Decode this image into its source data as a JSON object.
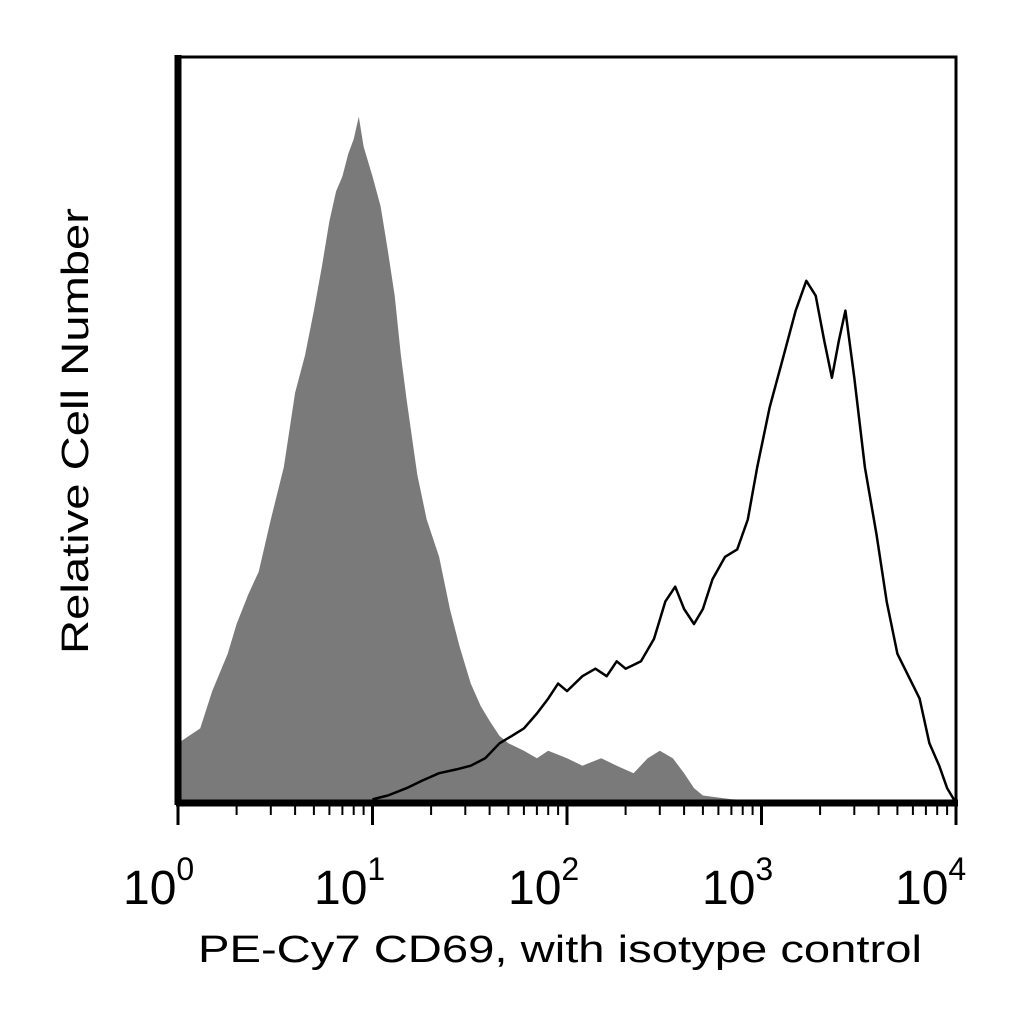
{
  "chart_data": {
    "type": "area",
    "title": "",
    "xlabel": "PE-Cy7 CD69, with isotype control",
    "ylabel": "Relative Cell Number",
    "x_scale": "log",
    "xlim": [
      1,
      10000
    ],
    "ylim": [
      0,
      100
    ],
    "grid": false,
    "legend": "none",
    "x_ticks": [
      {
        "base": "10",
        "exp": "0",
        "value": 1
      },
      {
        "base": "10",
        "exp": "1",
        "value": 10
      },
      {
        "base": "10",
        "exp": "2",
        "value": 100
      },
      {
        "base": "10",
        "exp": "3",
        "value": 1000
      },
      {
        "base": "10",
        "exp": "4",
        "value": 10000
      }
    ],
    "series": [
      {
        "style": "filled",
        "color": "#7a7a7a",
        "points": [
          [
            1.0,
            8
          ],
          [
            1.3,
            10
          ],
          [
            1.5,
            15
          ],
          [
            1.8,
            20
          ],
          [
            2.0,
            24
          ],
          [
            2.3,
            28
          ],
          [
            2.6,
            31
          ],
          [
            3.0,
            38
          ],
          [
            3.5,
            45
          ],
          [
            4.0,
            55
          ],
          [
            4.5,
            60
          ],
          [
            5.0,
            66
          ],
          [
            5.5,
            72
          ],
          [
            6.0,
            78
          ],
          [
            6.5,
            82
          ],
          [
            7.0,
            84
          ],
          [
            7.5,
            87
          ],
          [
            8.0,
            89
          ],
          [
            8.5,
            92
          ],
          [
            9.0,
            88
          ],
          [
            10.0,
            84
          ],
          [
            11.0,
            80
          ],
          [
            12.0,
            74
          ],
          [
            13.0,
            68
          ],
          [
            14.0,
            60
          ],
          [
            15.0,
            54
          ],
          [
            17.0,
            44
          ],
          [
            19.0,
            38
          ],
          [
            22.0,
            33
          ],
          [
            25.0,
            26
          ],
          [
            28.0,
            21
          ],
          [
            32.0,
            16
          ],
          [
            36.0,
            13
          ],
          [
            40.0,
            11
          ],
          [
            45.0,
            9
          ],
          [
            50.0,
            8
          ],
          [
            60.0,
            7
          ],
          [
            70.0,
            6
          ],
          [
            80.0,
            7
          ],
          [
            100.0,
            6
          ],
          [
            120.0,
            5
          ],
          [
            150.0,
            6
          ],
          [
            180.0,
            5
          ],
          [
            220.0,
            4
          ],
          [
            260.0,
            6
          ],
          [
            300.0,
            7
          ],
          [
            350.0,
            6
          ],
          [
            400.0,
            4
          ],
          [
            450.0,
            2
          ],
          [
            500.0,
            1
          ],
          [
            700.0,
            0.5
          ],
          [
            1000.0,
            0.3
          ],
          [
            2000.0,
            0.2
          ],
          [
            5000.0,
            0.2
          ],
          [
            10000.0,
            0
          ]
        ]
      },
      {
        "style": "line",
        "color": "#000000",
        "points": [
          [
            10.0,
            0.5
          ],
          [
            12.0,
            1
          ],
          [
            15.0,
            2
          ],
          [
            18.0,
            3
          ],
          [
            22.0,
            4
          ],
          [
            27.0,
            4.5
          ],
          [
            32.0,
            5
          ],
          [
            38.0,
            6
          ],
          [
            45.0,
            8
          ],
          [
            52.0,
            9
          ],
          [
            60.0,
            10
          ],
          [
            70.0,
            12
          ],
          [
            80.0,
            14
          ],
          [
            90.0,
            16
          ],
          [
            100.0,
            15
          ],
          [
            120.0,
            17
          ],
          [
            140.0,
            18
          ],
          [
            160.0,
            17
          ],
          [
            180.0,
            19
          ],
          [
            200.0,
            18
          ],
          [
            240.0,
            19
          ],
          [
            280.0,
            22
          ],
          [
            320.0,
            27
          ],
          [
            360.0,
            29
          ],
          [
            400.0,
            26
          ],
          [
            450.0,
            24
          ],
          [
            500.0,
            26
          ],
          [
            560.0,
            30
          ],
          [
            650.0,
            33
          ],
          [
            750.0,
            34
          ],
          [
            850.0,
            38
          ],
          [
            950.0,
            45
          ],
          [
            1100.0,
            53
          ],
          [
            1300.0,
            60
          ],
          [
            1500.0,
            66
          ],
          [
            1700.0,
            70
          ],
          [
            1900.0,
            68
          ],
          [
            2100.0,
            62
          ],
          [
            2300.0,
            57
          ],
          [
            2500.0,
            62
          ],
          [
            2700.0,
            66
          ],
          [
            3000.0,
            57
          ],
          [
            3400.0,
            45
          ],
          [
            3900.0,
            36
          ],
          [
            4400.0,
            27
          ],
          [
            5000.0,
            20
          ],
          [
            5700.0,
            17
          ],
          [
            6500.0,
            14
          ],
          [
            7300.0,
            8
          ],
          [
            8200.0,
            5
          ],
          [
            9000.0,
            2
          ],
          [
            10000.0,
            0
          ]
        ]
      }
    ]
  }
}
